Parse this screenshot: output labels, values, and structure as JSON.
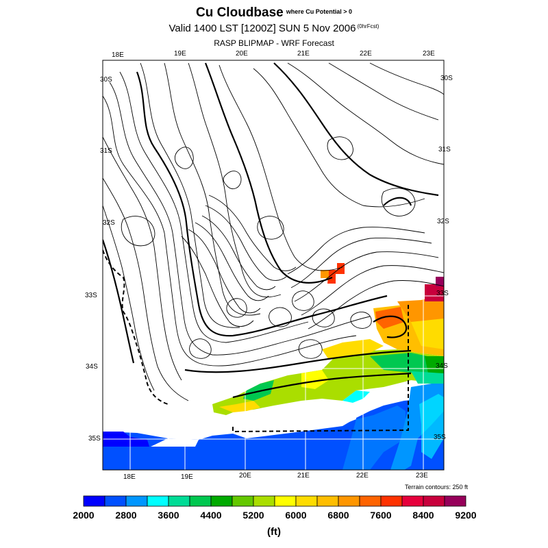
{
  "header": {
    "title": "Cu Cloudbase",
    "title_note": "where Cu Potential > 0",
    "valid_line": "Valid 1400 LST [1200Z] SUN 5 Nov 2006",
    "valid_note": "(0hrFcst)",
    "subtitle": "RASP BLIPMAP - WRF Forecast"
  },
  "map": {
    "lon_top": [
      "18E",
      "19E",
      "20E",
      "21E",
      "22E",
      "23E"
    ],
    "lon_bottom": [
      "18E",
      "19E",
      "20E",
      "21E",
      "22E",
      "23E"
    ],
    "lat_left": [
      "30S",
      "31S",
      "32S",
      "33S",
      "34S",
      "35S"
    ],
    "lat_right": [
      "30S",
      "31S",
      "32S",
      "33S",
      "34S",
      "35S"
    ],
    "terrain_note": "Terrain contours: 250 ft"
  },
  "colorbar": {
    "labels": [
      "2000",
      "2800",
      "3600",
      "4400",
      "5200",
      "6000",
      "6800",
      "7600",
      "8400",
      "9200"
    ],
    "colors": [
      "#0000ff",
      "#0050ff",
      "#0096ff",
      "#00ffff",
      "#00dc96",
      "#00c850",
      "#00aa00",
      "#64c800",
      "#aade00",
      "#ffff00",
      "#ffdc00",
      "#ffbe00",
      "#ff9600",
      "#ff6400",
      "#ff3200",
      "#e6003c",
      "#c8003c",
      "#96005a"
    ],
    "units": "(ft)"
  }
}
